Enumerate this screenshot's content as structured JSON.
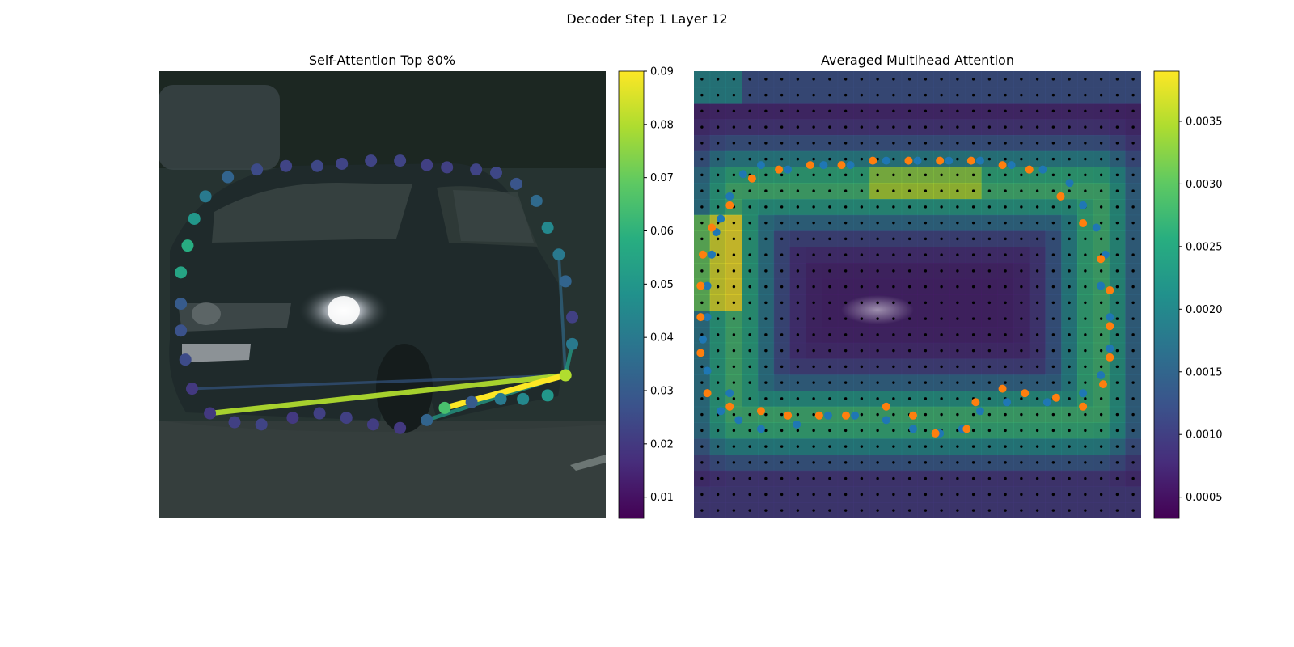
{
  "figure_title": "Decoder Step 1 Layer 12",
  "chart_data": [
    {
      "type": "scatter",
      "title": "Self-Attention Top 80%",
      "colorbar": {
        "min": 0.006,
        "max": 0.09,
        "ticks": [
          "0.01",
          "0.02",
          "0.03",
          "0.04",
          "0.05",
          "0.06",
          "0.07",
          "0.08",
          "0.09"
        ],
        "ticks_values": [
          0.01,
          0.02,
          0.03,
          0.04,
          0.05,
          0.06,
          0.07,
          0.08,
          0.09
        ],
        "colormap": "viridis"
      },
      "background": "photo of a dark sedan on a road",
      "axes": "off",
      "query_point": {
        "x": 0.91,
        "y": 0.68,
        "value": 0.08
      },
      "points": [
        {
          "x": 0.05,
          "y": 0.45,
          "value": 0.055
        },
        {
          "x": 0.065,
          "y": 0.39,
          "value": 0.058
        },
        {
          "x": 0.08,
          "y": 0.33,
          "value": 0.05
        },
        {
          "x": 0.105,
          "y": 0.28,
          "value": 0.04
        },
        {
          "x": 0.155,
          "y": 0.237,
          "value": 0.033
        },
        {
          "x": 0.22,
          "y": 0.22,
          "value": 0.025
        },
        {
          "x": 0.285,
          "y": 0.212,
          "value": 0.023
        },
        {
          "x": 0.355,
          "y": 0.212,
          "value": 0.024
        },
        {
          "x": 0.41,
          "y": 0.207,
          "value": 0.023
        },
        {
          "x": 0.475,
          "y": 0.2,
          "value": 0.023
        },
        {
          "x": 0.54,
          "y": 0.2,
          "value": 0.023
        },
        {
          "x": 0.6,
          "y": 0.21,
          "value": 0.022
        },
        {
          "x": 0.645,
          "y": 0.215,
          "value": 0.022
        },
        {
          "x": 0.71,
          "y": 0.22,
          "value": 0.023
        },
        {
          "x": 0.755,
          "y": 0.227,
          "value": 0.024
        },
        {
          "x": 0.8,
          "y": 0.252,
          "value": 0.028
        },
        {
          "x": 0.845,
          "y": 0.29,
          "value": 0.035
        },
        {
          "x": 0.87,
          "y": 0.35,
          "value": 0.045
        },
        {
          "x": 0.895,
          "y": 0.41,
          "value": 0.04
        },
        {
          "x": 0.91,
          "y": 0.47,
          "value": 0.033
        },
        {
          "x": 0.925,
          "y": 0.55,
          "value": 0.022
        },
        {
          "x": 0.925,
          "y": 0.61,
          "value": 0.04
        },
        {
          "x": 0.05,
          "y": 0.52,
          "value": 0.03
        },
        {
          "x": 0.05,
          "y": 0.58,
          "value": 0.027
        },
        {
          "x": 0.06,
          "y": 0.645,
          "value": 0.025
        },
        {
          "x": 0.075,
          "y": 0.71,
          "value": 0.02
        },
        {
          "x": 0.115,
          "y": 0.765,
          "value": 0.02
        },
        {
          "x": 0.17,
          "y": 0.785,
          "value": 0.022
        },
        {
          "x": 0.23,
          "y": 0.79,
          "value": 0.023
        },
        {
          "x": 0.3,
          "y": 0.775,
          "value": 0.02
        },
        {
          "x": 0.36,
          "y": 0.765,
          "value": 0.022
        },
        {
          "x": 0.42,
          "y": 0.775,
          "value": 0.022
        },
        {
          "x": 0.48,
          "y": 0.79,
          "value": 0.021
        },
        {
          "x": 0.54,
          "y": 0.798,
          "value": 0.02
        },
        {
          "x": 0.6,
          "y": 0.78,
          "value": 0.033
        },
        {
          "x": 0.64,
          "y": 0.753,
          "value": 0.065
        },
        {
          "x": 0.7,
          "y": 0.74,
          "value": 0.03
        },
        {
          "x": 0.765,
          "y": 0.733,
          "value": 0.04
        },
        {
          "x": 0.815,
          "y": 0.733,
          "value": 0.045
        },
        {
          "x": 0.87,
          "y": 0.725,
          "value": 0.05
        }
      ],
      "lines": [
        {
          "x1": 0.91,
          "y1": 0.68,
          "x2": 0.115,
          "y2": 0.765,
          "value": 0.08
        },
        {
          "x1": 0.91,
          "y1": 0.68,
          "x2": 0.64,
          "y2": 0.753,
          "value": 0.09
        },
        {
          "x1": 0.91,
          "y1": 0.68,
          "x2": 0.075,
          "y2": 0.71,
          "value": 0.03
        },
        {
          "x1": 0.91,
          "y1": 0.68,
          "x2": 0.6,
          "y2": 0.78,
          "value": 0.052
        },
        {
          "x1": 0.91,
          "y1": 0.68,
          "x2": 0.925,
          "y2": 0.61,
          "value": 0.052
        },
        {
          "x1": 0.91,
          "y1": 0.68,
          "x2": 0.895,
          "y2": 0.41,
          "value": 0.035
        }
      ]
    },
    {
      "type": "heatmap",
      "title": "Averaged Multihead Attention",
      "colorbar": {
        "min": 0.00033,
        "max": 0.0039,
        "ticks": [
          "0.0005",
          "0.0010",
          "0.0015",
          "0.0020",
          "0.0025",
          "0.0030",
          "0.0035"
        ],
        "ticks_values": [
          0.0005,
          0.001,
          0.0015,
          0.002,
          0.0025,
          0.003,
          0.0035
        ],
        "colormap": "viridis"
      },
      "grid": 28,
      "axes": "off",
      "series": [
        {
          "name": "",
          "color": "#1f77b4",
          "points": [
            [
              0.03,
              0.67
            ],
            [
              0.02,
              0.6
            ],
            [
              0.03,
              0.55
            ],
            [
              0.03,
              0.48
            ],
            [
              0.04,
              0.41
            ],
            [
              0.05,
              0.36
            ],
            [
              0.06,
              0.33
            ],
            [
              0.08,
              0.28
            ],
            [
              0.11,
              0.23
            ],
            [
              0.15,
              0.21
            ],
            [
              0.21,
              0.22
            ],
            [
              0.29,
              0.21
            ],
            [
              0.35,
              0.21
            ],
            [
              0.43,
              0.2
            ],
            [
              0.5,
              0.2
            ],
            [
              0.57,
              0.2
            ],
            [
              0.64,
              0.2
            ],
            [
              0.71,
              0.21
            ],
            [
              0.78,
              0.22
            ],
            [
              0.84,
              0.25
            ],
            [
              0.87,
              0.3
            ],
            [
              0.9,
              0.35
            ],
            [
              0.92,
              0.41
            ],
            [
              0.91,
              0.48
            ],
            [
              0.93,
              0.55
            ],
            [
              0.93,
              0.62
            ],
            [
              0.91,
              0.68
            ],
            [
              0.87,
              0.72
            ],
            [
              0.79,
              0.74
            ],
            [
              0.7,
              0.74
            ],
            [
              0.64,
              0.76
            ],
            [
              0.6,
              0.8
            ],
            [
              0.55,
              0.81
            ],
            [
              0.49,
              0.8
            ],
            [
              0.43,
              0.78
            ],
            [
              0.36,
              0.77
            ],
            [
              0.3,
              0.77
            ],
            [
              0.23,
              0.79
            ],
            [
              0.15,
              0.8
            ],
            [
              0.1,
              0.78
            ],
            [
              0.06,
              0.76
            ],
            [
              0.08,
              0.72
            ]
          ]
        },
        {
          "name": "",
          "color": "#ff7f0e",
          "points": [
            [
              0.015,
              0.55
            ],
            [
              0.015,
              0.48
            ],
            [
              0.02,
              0.41
            ],
            [
              0.04,
              0.35
            ],
            [
              0.08,
              0.3
            ],
            [
              0.13,
              0.24
            ],
            [
              0.19,
              0.22
            ],
            [
              0.26,
              0.21
            ],
            [
              0.33,
              0.21
            ],
            [
              0.4,
              0.2
            ],
            [
              0.48,
              0.2
            ],
            [
              0.55,
              0.2
            ],
            [
              0.62,
              0.2
            ],
            [
              0.69,
              0.21
            ],
            [
              0.75,
              0.22
            ],
            [
              0.82,
              0.28
            ],
            [
              0.87,
              0.34
            ],
            [
              0.91,
              0.42
            ],
            [
              0.93,
              0.49
            ],
            [
              0.93,
              0.57
            ],
            [
              0.93,
              0.64
            ],
            [
              0.915,
              0.7
            ],
            [
              0.87,
              0.75
            ],
            [
              0.81,
              0.73
            ],
            [
              0.74,
              0.72
            ],
            [
              0.69,
              0.71
            ],
            [
              0.63,
              0.74
            ],
            [
              0.61,
              0.8
            ],
            [
              0.54,
              0.81
            ],
            [
              0.49,
              0.77
            ],
            [
              0.43,
              0.75
            ],
            [
              0.34,
              0.77
            ],
            [
              0.28,
              0.77
            ],
            [
              0.21,
              0.77
            ],
            [
              0.15,
              0.76
            ],
            [
              0.08,
              0.75
            ],
            [
              0.03,
              0.72
            ],
            [
              0.015,
              0.63
            ]
          ]
        }
      ]
    }
  ]
}
